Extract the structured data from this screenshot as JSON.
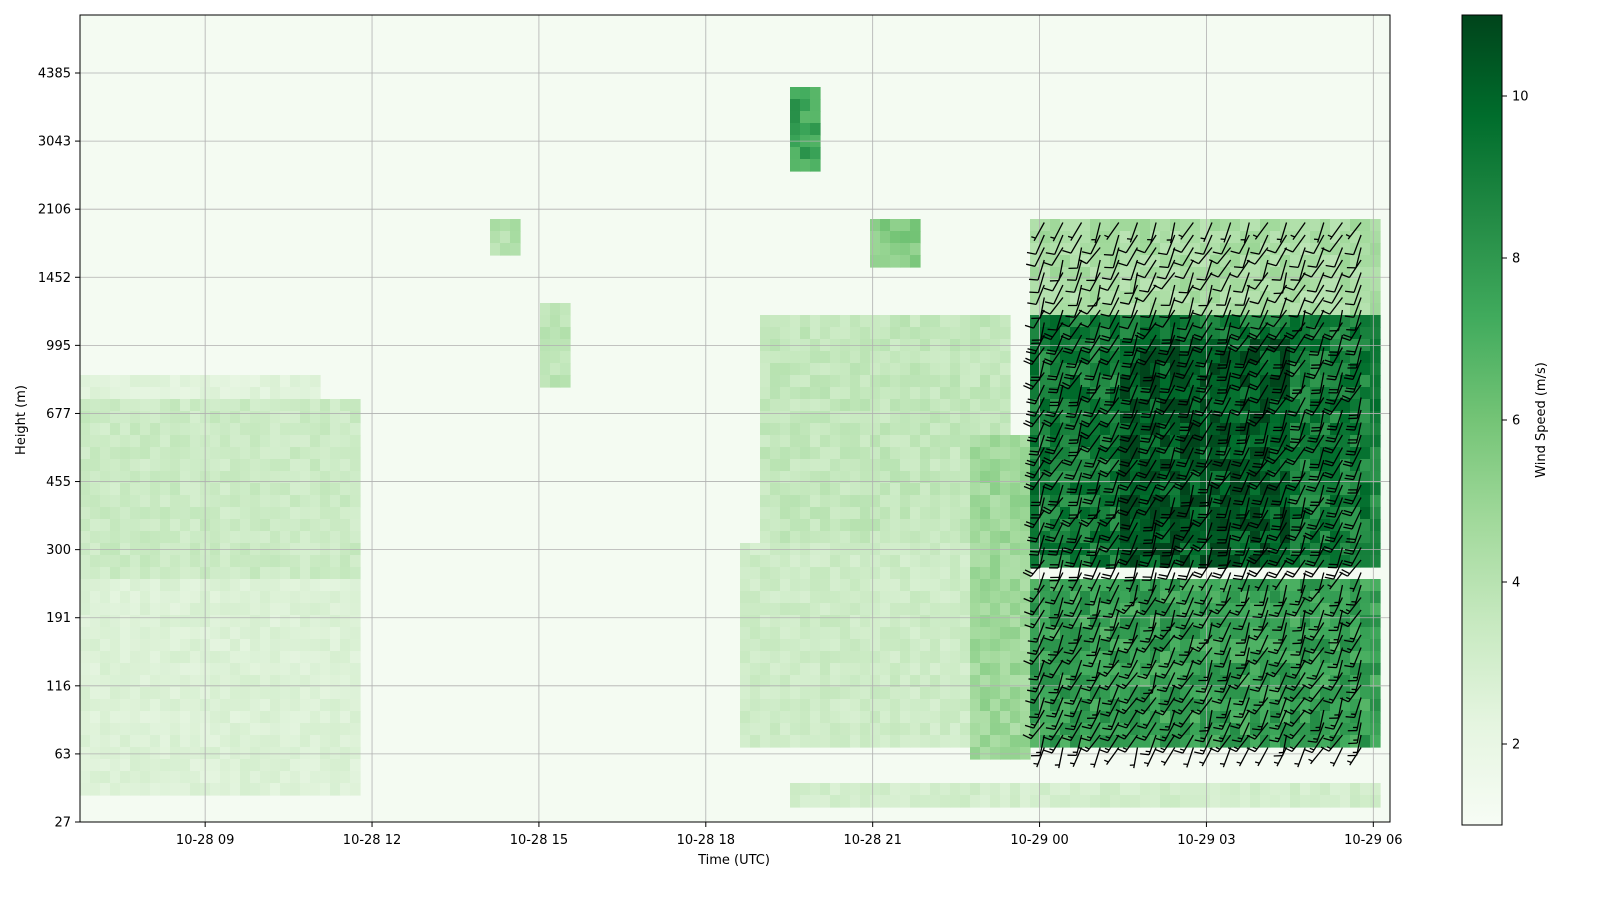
{
  "chart_data": {
    "type": "heatmap",
    "title": "",
    "xlabel": "Time (UTC)",
    "ylabel": "Height (m)",
    "x_ticks": [
      "10-28 09",
      "10-28 12",
      "10-28 15",
      "10-28 18",
      "10-28 21",
      "10-29 00",
      "10-29 03",
      "10-29 06"
    ],
    "x_tick_hours": [
      9,
      12,
      15,
      18,
      21,
      24,
      27,
      30
    ],
    "xlim_hours": [
      6.75,
      30.3
    ],
    "y_ticks": [
      "27",
      "63",
      "116",
      "191",
      "300",
      "455",
      "677",
      "995",
      "1452",
      "2106",
      "3043",
      "4385"
    ],
    "y_tick_values_m": [
      27,
      63,
      116,
      191,
      300,
      455,
      677,
      995,
      1452,
      2106,
      3043,
      4385
    ],
    "y_scale": "log",
    "grid": true,
    "colorbar": {
      "label": "Wind Speed (m/s)",
      "ticks": [
        "2",
        "4",
        "6",
        "8",
        "10"
      ],
      "tick_values": [
        2,
        4,
        6,
        8,
        10
      ],
      "range": [
        1,
        11
      ],
      "colormap": [
        "#f7fcf5",
        "#e5f5e0",
        "#c7e9c0",
        "#a1d99b",
        "#74c476",
        "#41ab5d",
        "#238b45",
        "#006d2c",
        "#00441b"
      ]
    },
    "regions": [
      {
        "t0": 6.75,
        "t1": 11.7,
        "z0": 40,
        "z1": 240,
        "speed": 2.6
      },
      {
        "t0": 6.75,
        "t1": 11.7,
        "z0": 250,
        "z1": 720,
        "speed": 3.3
      },
      {
        "t0": 6.75,
        "t1": 11.0,
        "z0": 760,
        "z1": 860,
        "speed": 2.4
      },
      {
        "t0": 15.0,
        "t1": 15.6,
        "z0": 800,
        "z1": 1300,
        "speed": 3.8
      },
      {
        "t0": 14.2,
        "t1": 14.6,
        "z0": 1600,
        "z1": 2000,
        "speed": 4.2
      },
      {
        "t0": 18.6,
        "t1": 22.8,
        "z0": 70,
        "z1": 320,
        "speed": 3.2
      },
      {
        "t0": 19.0,
        "t1": 23.5,
        "z0": 320,
        "z1": 1200,
        "speed": 3.6
      },
      {
        "t0": 21.0,
        "t1": 21.9,
        "z0": 1500,
        "z1": 2000,
        "speed": 5.6
      },
      {
        "t0": 19.5,
        "t1": 20.1,
        "z0": 2600,
        "z1": 4200,
        "speed": 7.5
      },
      {
        "t0": 22.8,
        "t1": 23.8,
        "z0": 60,
        "z1": 600,
        "speed": 4.8
      },
      {
        "t0": 23.8,
        "t1": 30.2,
        "z0": 70,
        "z1": 240,
        "speed": 7.6
      },
      {
        "t0": 23.8,
        "t1": 30.2,
        "z0": 270,
        "z1": 1200,
        "speed": 8.9
      },
      {
        "t0": 25.5,
        "t1": 28.5,
        "z0": 260,
        "z1": 1050,
        "speed": 10.3
      },
      {
        "t0": 23.8,
        "t1": 30.2,
        "z0": 1200,
        "z1": 1950,
        "speed": 4.4
      },
      {
        "t0": 19.5,
        "t1": 30.2,
        "z0": 33,
        "z1": 45,
        "speed": 3.0
      }
    ]
  }
}
